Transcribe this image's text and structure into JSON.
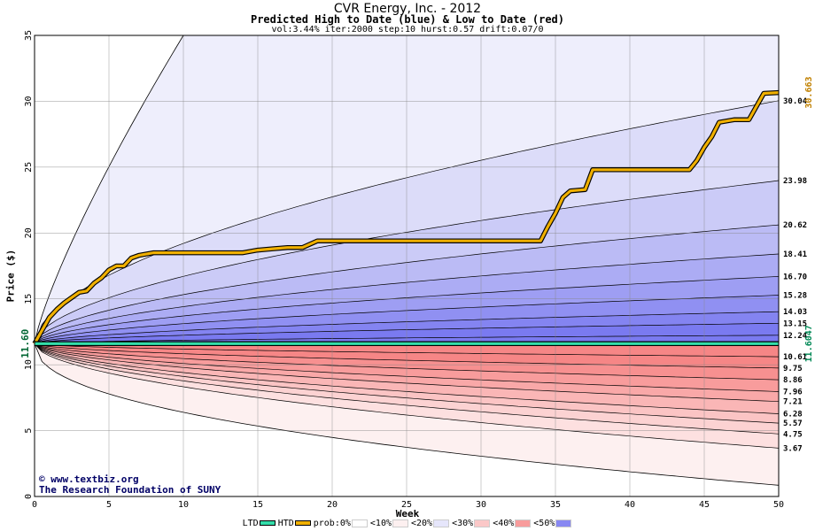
{
  "title": "CVR Energy, Inc. - 2012",
  "subtitle": "Predicted High to Date (blue) &  Low to Date (red)",
  "params": "vol:3.44% iter:2000 step:10 hurst:0.57 drift:0.07/0",
  "credit_line1": "© www.textbiz.org",
  "credit_line2": "The Research Foundation of SUNY",
  "legend": [
    {
      "label": "LTD",
      "color": "#33ddaa",
      "kind": "line"
    },
    {
      "label": "HTD",
      "color": "#f0b000",
      "kind": "line"
    },
    {
      "label": "prob:0%",
      "color": "#ffffff",
      "kind": "box"
    },
    {
      "label": "<10%",
      "color": "#fdf0f0",
      "kind": "box"
    },
    {
      "label": "<20%",
      "color": "#e6e6fb",
      "kind": "box"
    },
    {
      "label": "<30%",
      "color": "#fbc8c8",
      "kind": "box"
    },
    {
      "label": "<40%",
      "color": "#f89c9c",
      "kind": "box"
    },
    {
      "label": "<50%",
      "color": "#8888f2",
      "kind": "box"
    }
  ],
  "chart_data": {
    "type": "line",
    "title": "CVR Energy, Inc. - 2012",
    "xlabel": "Week",
    "ylabel": "Price ($)",
    "xlim": [
      0,
      50
    ],
    "ylim": [
      0,
      35
    ],
    "x_ticks": [
      0,
      5,
      10,
      15,
      20,
      25,
      30,
      35,
      40,
      45,
      50
    ],
    "y_ticks": [
      0,
      5,
      10,
      15,
      20,
      25,
      30,
      35
    ],
    "grid": true,
    "start_price": 11.6,
    "start_label": "11.60",
    "high_band_levels": [
      12.24,
      13.15,
      14.03,
      15.28,
      16.7,
      18.41,
      20.62,
      23.98,
      30.04
    ],
    "high_band_labels": [
      "12.24",
      "13.15",
      "14.03",
      "15.28",
      "16.70",
      "18.41",
      "20.62",
      "23.98",
      "30.04"
    ],
    "low_band_levels": [
      10.61,
      9.75,
      8.86,
      7.96,
      7.21,
      6.28,
      5.57,
      4.75,
      3.67
    ],
    "low_band_labels": [
      "10.61",
      "9.75",
      "8.86",
      "7.96",
      "7.21",
      "6.28",
      "5.57",
      "4.75",
      "3.67"
    ],
    "outer_high_hits_35_at_week": 10,
    "outer_low_end": 0.85,
    "high_band_colors": [
      "#dcdcf9",
      "#cbcbf7",
      "#bbbbf5",
      "#acacf4",
      "#9e9ef3",
      "#9090f2",
      "#8484f1",
      "#7a7af0"
    ],
    "low_band_colors": [
      "#fde0e0",
      "#fcd2d2",
      "#fbc4c4",
      "#fab6b6",
      "#f9a8a8",
      "#f89c9c",
      "#f79090",
      "#f68686"
    ],
    "outer_high_color": "#eeeefc",
    "outer_low_color": "#fdf0f0",
    "series": [
      {
        "name": "HTD",
        "color": "#f0b000",
        "x": [
          0,
          0.5,
          1,
          1.5,
          2,
          2.5,
          3,
          3.5,
          4,
          4.5,
          5,
          5.5,
          6,
          6.5,
          7,
          8,
          9,
          10,
          12,
          14,
          15,
          16,
          17,
          18,
          19,
          20,
          22,
          24,
          26,
          28,
          30,
          32,
          34,
          34.5,
          35,
          35.5,
          36,
          37,
          37.5,
          38,
          40,
          42,
          44,
          44.5,
          45,
          45.5,
          46,
          47,
          48,
          48.5,
          49,
          50
        ],
        "y": [
          11.6,
          12.6,
          13.6,
          14.2,
          14.7,
          15.1,
          15.5,
          15.6,
          16.2,
          16.6,
          17.2,
          17.5,
          17.5,
          18.1,
          18.3,
          18.5,
          18.5,
          18.5,
          18.5,
          18.5,
          18.7,
          18.8,
          18.9,
          18.9,
          19.4,
          19.4,
          19.4,
          19.4,
          19.4,
          19.4,
          19.4,
          19.4,
          19.4,
          20.5,
          21.5,
          22.7,
          23.2,
          23.3,
          24.8,
          24.8,
          24.8,
          24.8,
          24.8,
          25.5,
          26.5,
          27.3,
          28.4,
          28.6,
          28.6,
          29.6,
          30.6,
          30.663
        ]
      },
      {
        "name": "LTD",
        "color": "#33ddaa",
        "x": [
          0,
          0.5,
          1,
          50
        ],
        "y": [
          11.6,
          11.6,
          11.6047,
          11.6047
        ]
      }
    ],
    "end_labels": {
      "htd": "30.663",
      "ltd": "11.6047"
    }
  }
}
